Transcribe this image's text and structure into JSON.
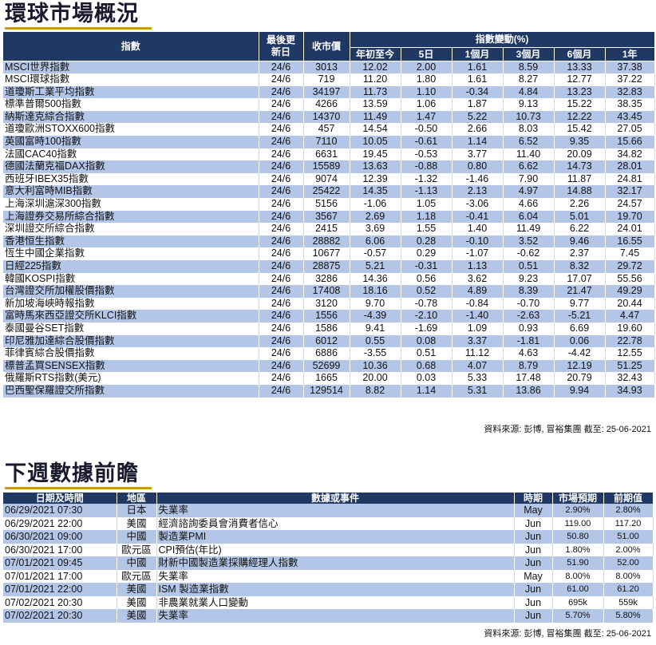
{
  "market": {
    "title": "環球市場概況",
    "headers": {
      "index": "指數",
      "last_update": "最後更新日",
      "close": "收市價",
      "change_group": "指數變動(%)",
      "ytd": "年初至今",
      "d5": "5日",
      "m1": "1個月",
      "m3": "3個月",
      "m6": "6個月",
      "y1": "1年"
    },
    "rows": [
      [
        "MSCI世界指數",
        "24/6",
        "3013",
        "12.02",
        "2.00",
        "1.61",
        "8.59",
        "13.33",
        "37.38"
      ],
      [
        "MSCI環球指數",
        "24/6",
        "719",
        "11.20",
        "1.80",
        "1.61",
        "8.27",
        "12.77",
        "37.22"
      ],
      [
        "道瓊斯工業平均指數",
        "24/6",
        "34197",
        "11.73",
        "1.10",
        "-0.34",
        "4.84",
        "13.23",
        "32.83"
      ],
      [
        "標準普爾500指數",
        "24/6",
        "4266",
        "13.59",
        "1.06",
        "1.87",
        "9.13",
        "15.22",
        "38.35"
      ],
      [
        "納斯達克綜合指數",
        "24/6",
        "14370",
        "11.49",
        "1.47",
        "5.22",
        "10.73",
        "12.22",
        "43.45"
      ],
      [
        "道瓊歐洲STOXX600指數",
        "24/6",
        "457",
        "14.54",
        "-0.50",
        "2.66",
        "8.03",
        "15.42",
        "27.05"
      ],
      [
        "英國富時100指數",
        "24/6",
        "7110",
        "10.05",
        "-0.61",
        "1.14",
        "6.52",
        "9.35",
        "15.66"
      ],
      [
        "法國CAC40指數",
        "24/6",
        "6631",
        "19.45",
        "-0.53",
        "3.77",
        "11.40",
        "20.09",
        "34.82"
      ],
      [
        "德國法蘭克福DAX指數",
        "24/6",
        "15589",
        "13.63",
        "-0.88",
        "0.80",
        "6.62",
        "14.73",
        "28.01"
      ],
      [
        "西班牙IBEX35指數",
        "24/6",
        "9074",
        "12.39",
        "-1.32",
        "-1.46",
        "7.90",
        "11.87",
        "24.81"
      ],
      [
        "意大利富時MIB指數",
        "24/6",
        "25422",
        "14.35",
        "-1.13",
        "2.13",
        "4.97",
        "14.88",
        "32.17"
      ],
      [
        "上海深圳滬深300指數",
        "24/6",
        "5156",
        "-1.06",
        "1.05",
        "-3.06",
        "4.66",
        "2.26",
        "24.57"
      ],
      [
        "上海證券交易所綜合指數",
        "24/6",
        "3567",
        "2.69",
        "1.18",
        "-0.41",
        "6.04",
        "5.01",
        "19.70"
      ],
      [
        "深圳證交所綜合指數",
        "24/6",
        "2415",
        "3.69",
        "1.55",
        "1.40",
        "11.49",
        "6.22",
        "24.01"
      ],
      [
        "香港恒生指數",
        "24/6",
        "28882",
        "6.06",
        "0.28",
        "-0.10",
        "3.52",
        "9.46",
        "16.55"
      ],
      [
        "恆生中國企業指數",
        "24/6",
        "10677",
        "-0.57",
        "0.29",
        "-1.07",
        "-0.62",
        "2.37",
        "7.45"
      ],
      [
        "日經225指數",
        "24/6",
        "28875",
        "5.21",
        "-0.31",
        "1.13",
        "0.51",
        "8.32",
        "29.72"
      ],
      [
        "韓國KOSPI指數",
        "24/6",
        "3286",
        "14.36",
        "0.56",
        "3.62",
        "9.23",
        "17.07",
        "55.56"
      ],
      [
        "台灣證交所加權股價指數",
        "24/6",
        "17408",
        "18.16",
        "0.52",
        "4.89",
        "8.39",
        "21.47",
        "49.29"
      ],
      [
        "新加坡海峽時報指數",
        "24/6",
        "3120",
        "9.70",
        "-0.78",
        "-0.84",
        "-0.70",
        "9.77",
        "20.44"
      ],
      [
        "富時馬來西亞證交所KLCI指數",
        "24/6",
        "1556",
        "-4.39",
        "-2.10",
        "-1.40",
        "-2.63",
        "-5.21",
        "4.47"
      ],
      [
        "泰國曼谷SET指數",
        "24/6",
        "1586",
        "9.41",
        "-1.69",
        "1.09",
        "0.93",
        "6.69",
        "19.60"
      ],
      [
        "印尼雅加達綜合股價指數",
        "24/6",
        "6012",
        "0.55",
        "0.08",
        "3.37",
        "-1.81",
        "0.06",
        "22.78"
      ],
      [
        "菲律賓綜合股價指數",
        "24/6",
        "6886",
        "-3.55",
        "0.51",
        "11.12",
        "4.63",
        "-4.42",
        "12.55"
      ],
      [
        "標普孟買SENSEX指數",
        "24/6",
        "52699",
        "10.36",
        "0.68",
        "4.07",
        "8.79",
        "12.19",
        "51.25"
      ],
      [
        "俄羅斯RTS指數(美元)",
        "24/6",
        "1665",
        "20.00",
        "0.03",
        "5.33",
        "17.48",
        "20.79",
        "32.43"
      ],
      [
        "巴西聖保羅證交所指數",
        "24/6",
        "129514",
        "8.82",
        "1.14",
        "5.31",
        "13.86",
        "9.94",
        "34.93"
      ]
    ],
    "source": "資料來源: 彭博, 冒裕集團 截至: 25-06-2021"
  },
  "calendar": {
    "title": "下週數據前瞻",
    "headers": {
      "datetime": "日期及時間",
      "region": "地區",
      "event": "數據或事件",
      "period": "時期",
      "forecast": "市場預期",
      "previous": "前期值"
    },
    "rows": [
      [
        "06/29/2021 07:30",
        "日本",
        "失業率",
        "May",
        "2.90%",
        "2.80%"
      ],
      [
        "06/29/2021 22:00",
        "美國",
        "經濟諮詢委員會消費者信心",
        "Jun",
        "119.00",
        "117.20"
      ],
      [
        "06/30/2021 09:00",
        "中國",
        "製造業PMI",
        "Jun",
        "50.80",
        "51.00"
      ],
      [
        "06/30/2021 17:00",
        "歐元區",
        "CPI預估(年比)",
        "Jun",
        "1.80%",
        "2.00%"
      ],
      [
        "07/01/2021 09:45",
        "中國",
        "財新中國製造業採購經理人指數",
        "Jun",
        "51.90",
        "52.00"
      ],
      [
        "07/01/2021 17:00",
        "歐元區",
        "失業率",
        "May",
        "8.00%",
        "8.00%"
      ],
      [
        "07/01/2021 22:00",
        "美國",
        "ISM 製造業指數",
        "Jun",
        "61.00",
        "61.20"
      ],
      [
        "07/02/2021 20:30",
        "美國",
        "非農業就業人口變動",
        "Jun",
        "695k",
        "559k"
      ],
      [
        "07/02/2021 20:30",
        "美國",
        "失業率",
        "Jun",
        "5.70%",
        "5.80%"
      ]
    ],
    "source": "資料來源: 彭博, 冒裕集團 截至: 25-06-2021"
  },
  "colors": {
    "header_bg": "#1f3864",
    "stripe": "#b4c6e7",
    "title_underline": "#c79a1b"
  }
}
